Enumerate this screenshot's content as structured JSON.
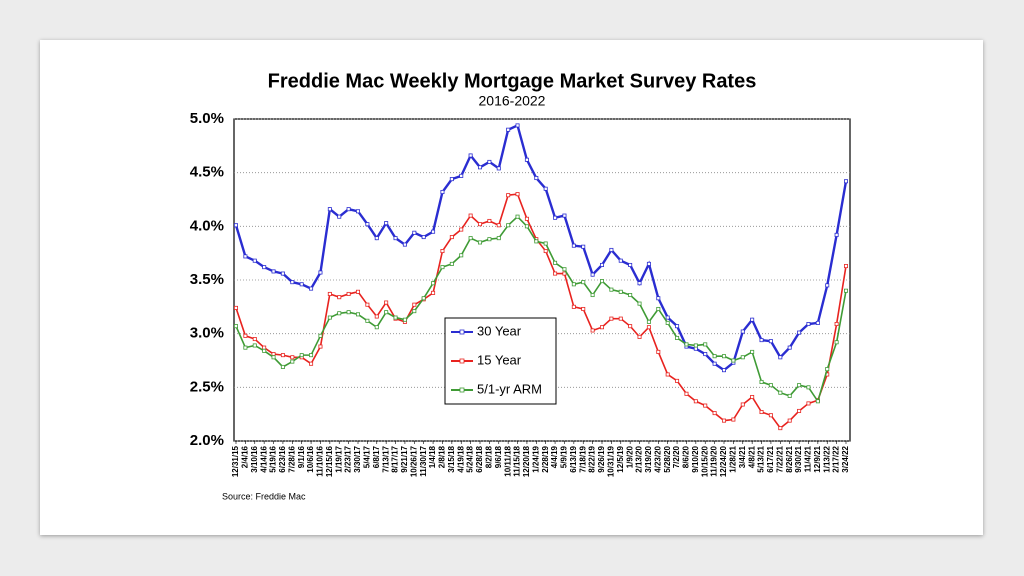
{
  "chart_data": {
    "type": "line",
    "title": "Freddie Mac Weekly Mortgage Market Survey Rates",
    "subtitle": "2016-2022",
    "source": "Source:  Freddie Mac",
    "categories": [
      "12/31/15",
      "2/4/16",
      "3/10/16",
      "4/14/16",
      "5/19/16",
      "6/23/16",
      "7/28/16",
      "9/1/16",
      "10/6/16",
      "11/10/16",
      "12/15/16",
      "1/19/17",
      "2/23/17",
      "3/30/17",
      "5/4/17",
      "6/8/17",
      "7/13/17",
      "8/17/17",
      "9/21/17",
      "10/26/17",
      "11/30/17",
      "1/4/18",
      "2/8/18",
      "3/15/18",
      "4/19/18",
      "5/24/18",
      "6/28/18",
      "8/2/18",
      "9/6/18",
      "10/11/18",
      "11/15/18",
      "12/20/18",
      "1/24/19",
      "2/28/19",
      "4/4/19",
      "5/9/19",
      "6/13/19",
      "7/18/19",
      "8/22/19",
      "9/26/19",
      "10/31/19",
      "12/5/19",
      "1/9/20",
      "2/13/20",
      "3/19/20",
      "4/23/20",
      "5/28/20",
      "7/2/20",
      "8/6/20",
      "9/10/20",
      "10/15/20",
      "11/19/20",
      "12/24/20",
      "1/28/21",
      "3/4/21",
      "4/8/21",
      "5/13/21",
      "6/17/21",
      "7/22/21",
      "8/26/21",
      "9/30/21",
      "11/4/21",
      "12/9/21",
      "1/13/22",
      "2/17/22",
      "3/24/22"
    ],
    "series": [
      {
        "name": "30 Year",
        "color": "#2a2dd1",
        "values": [
          4.01,
          3.72,
          3.68,
          3.62,
          3.58,
          3.56,
          3.48,
          3.46,
          3.42,
          3.57,
          4.16,
          4.09,
          4.16,
          4.14,
          4.02,
          3.89,
          4.03,
          3.89,
          3.83,
          3.94,
          3.9,
          3.95,
          4.32,
          4.44,
          4.47,
          4.66,
          4.55,
          4.6,
          4.54,
          4.9,
          4.94,
          4.62,
          4.45,
          4.35,
          4.08,
          4.1,
          3.82,
          3.81,
          3.55,
          3.64,
          3.78,
          3.68,
          3.64,
          3.47,
          3.65,
          3.33,
          3.15,
          3.07,
          2.88,
          2.86,
          2.81,
          2.72,
          2.66,
          2.73,
          3.02,
          3.13,
          2.94,
          2.93,
          2.78,
          2.87,
          3.01,
          3.09,
          3.1,
          3.45,
          3.92,
          4.42
        ]
      },
      {
        "name": "15 Year",
        "color": "#e8231f",
        "values": [
          3.24,
          2.98,
          2.95,
          2.87,
          2.81,
          2.8,
          2.78,
          2.78,
          2.72,
          2.88,
          3.37,
          3.34,
          3.37,
          3.39,
          3.27,
          3.16,
          3.29,
          3.14,
          3.11,
          3.27,
          3.32,
          3.38,
          3.77,
          3.9,
          3.97,
          4.1,
          4.02,
          4.05,
          4.01,
          4.29,
          4.3,
          4.07,
          3.88,
          3.77,
          3.56,
          3.56,
          3.25,
          3.23,
          3.03,
          3.06,
          3.14,
          3.14,
          3.07,
          2.97,
          3.06,
          2.83,
          2.62,
          2.56,
          2.44,
          2.37,
          2.33,
          2.26,
          2.19,
          2.2,
          2.34,
          2.41,
          2.27,
          2.24,
          2.12,
          2.19,
          2.28,
          2.35,
          2.38,
          2.62,
          3.09,
          3.63
        ]
      },
      {
        "name": "5/1-yr ARM",
        "color": "#3f9b35",
        "values": [
          3.07,
          2.87,
          2.89,
          2.84,
          2.78,
          2.69,
          2.74,
          2.8,
          2.8,
          2.98,
          3.15,
          3.19,
          3.2,
          3.18,
          3.12,
          3.06,
          3.2,
          3.15,
          3.13,
          3.21,
          3.33,
          3.47,
          3.62,
          3.65,
          3.73,
          3.89,
          3.85,
          3.88,
          3.89,
          4.01,
          4.09,
          4.0,
          3.86,
          3.84,
          3.66,
          3.6,
          3.46,
          3.48,
          3.36,
          3.49,
          3.41,
          3.39,
          3.36,
          3.28,
          3.11,
          3.23,
          3.1,
          2.96,
          2.9,
          2.89,
          2.9,
          2.79,
          2.79,
          2.75,
          2.78,
          2.83,
          2.55,
          2.52,
          2.45,
          2.42,
          2.52,
          2.5,
          2.37,
          2.67,
          2.92,
          3.4
        ]
      }
    ],
    "ylim": [
      2.0,
      5.0
    ],
    "yticks": [
      {
        "value": 2.0,
        "label": "2.0%"
      },
      {
        "value": 2.5,
        "label": "2.5%"
      },
      {
        "value": 3.0,
        "label": "3.0%"
      },
      {
        "value": 3.5,
        "label": "3.5%"
      },
      {
        "value": 4.0,
        "label": "4.0%"
      },
      {
        "value": 4.5,
        "label": "4.5%"
      },
      {
        "value": 5.0,
        "label": "5.0%"
      }
    ],
    "grid": true
  }
}
